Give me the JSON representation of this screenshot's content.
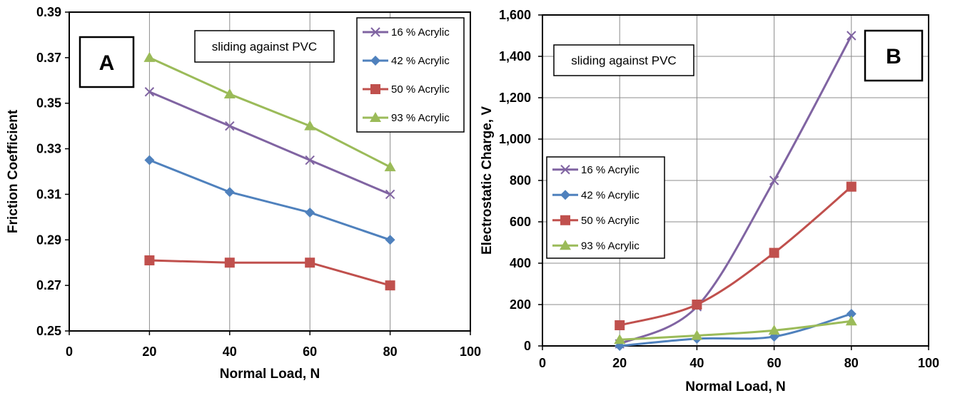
{
  "chart_data": [
    {
      "id": "A",
      "type": "line",
      "panel_label": "A",
      "annotation": "sliding against PVC",
      "xlabel": "Normal Load, N",
      "ylabel": "Friction Coefficient",
      "xlim": [
        0,
        100
      ],
      "ylim": [
        0.25,
        0.39
      ],
      "xticks": [
        0,
        20,
        40,
        60,
        80,
        100
      ],
      "xtick_labels": [
        "0",
        "20",
        "40",
        "60",
        "80",
        "100"
      ],
      "yticks": [
        0.25,
        0.27,
        0.29,
        0.31,
        0.33,
        0.35,
        0.37,
        0.39
      ],
      "ytick_labels": [
        "0.25",
        "0.27",
        "0.29",
        "0.31",
        "0.33",
        "0.35",
        "0.37",
        "0.39"
      ],
      "grid": "vertical",
      "legend_position": "top-right",
      "smooth": false,
      "x": [
        20,
        40,
        60,
        80
      ],
      "series": [
        {
          "name": "16 % Acrylic",
          "values": [
            0.355,
            0.34,
            0.325,
            0.31
          ],
          "color": "#8064A2",
          "marker": "x"
        },
        {
          "name": "42 % Acrylic",
          "values": [
            0.325,
            0.311,
            0.302,
            0.29
          ],
          "color": "#4F81BD",
          "marker": "diamond"
        },
        {
          "name": "50 % Acrylic",
          "values": [
            0.281,
            0.28,
            0.28,
            0.27
          ],
          "color": "#C0504D",
          "marker": "square"
        },
        {
          "name": "93 % Acrylic",
          "values": [
            0.37,
            0.354,
            0.34,
            0.322
          ],
          "color": "#9BBB59",
          "marker": "triangle"
        }
      ]
    },
    {
      "id": "B",
      "type": "line",
      "panel_label": "B",
      "annotation": "sliding against PVC",
      "xlabel": "Normal Load, N",
      "ylabel": "Electrostatic Charge, V",
      "xlim": [
        0,
        100
      ],
      "ylim": [
        0,
        1600
      ],
      "xticks": [
        0,
        20,
        40,
        60,
        80,
        100
      ],
      "xtick_labels": [
        "0",
        "20",
        "40",
        "60",
        "80",
        "100"
      ],
      "yticks": [
        0,
        200,
        400,
        600,
        800,
        1000,
        1200,
        1400,
        1600
      ],
      "ytick_labels": [
        "0",
        "200",
        "400",
        "600",
        "800",
        "1,000",
        "1,200",
        "1,400",
        "1,600"
      ],
      "grid": "both",
      "legend_position": "middle-left",
      "smooth": true,
      "x": [
        20,
        40,
        60,
        80
      ],
      "series": [
        {
          "name": "16 % Acrylic",
          "values": [
            10,
            190,
            800,
            1500
          ],
          "color": "#8064A2",
          "marker": "x"
        },
        {
          "name": "42 % Acrylic",
          "values": [
            0,
            35,
            45,
            155
          ],
          "color": "#4F81BD",
          "marker": "diamond"
        },
        {
          "name": "50 % Acrylic",
          "values": [
            100,
            200,
            450,
            770
          ],
          "color": "#C0504D",
          "marker": "square"
        },
        {
          "name": "93 % Acrylic",
          "values": [
            30,
            50,
            75,
            120
          ],
          "color": "#9BBB59",
          "marker": "triangle"
        }
      ]
    }
  ]
}
